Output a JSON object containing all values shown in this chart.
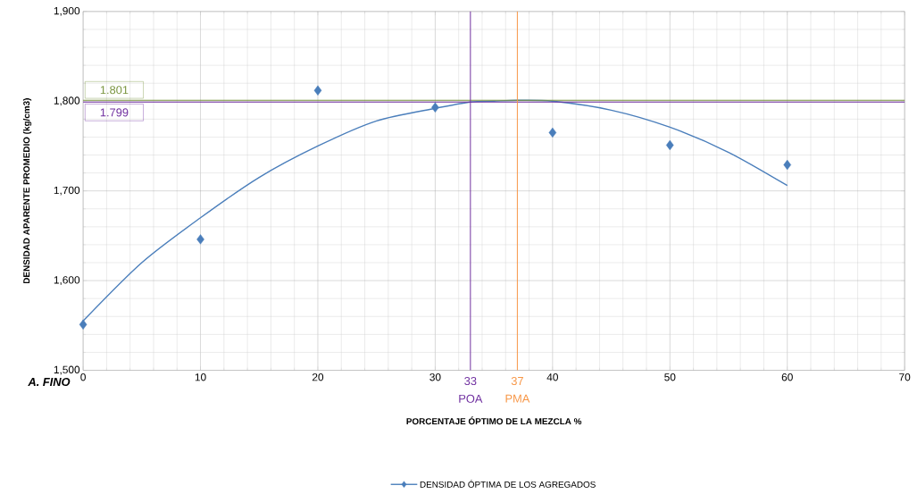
{
  "chart_data": {
    "type": "scatter",
    "xlabel": "PORCENTAJE ÓPTIMO DE LA MEZCLA %",
    "ylabel": "DENSIDAD APARENTE PROMEDIO (kg/cm3)",
    "xlim": [
      0,
      70
    ],
    "xticks": [
      0,
      10,
      20,
      30,
      40,
      50,
      60,
      70
    ],
    "ylim": [
      1500,
      1900
    ],
    "yticks": [
      {
        "value": 1500,
        "label": "1,500"
      },
      {
        "value": 1600,
        "label": "1,600"
      },
      {
        "value": 1700,
        "label": "1,700"
      },
      {
        "value": 1800,
        "label": "1,800"
      },
      {
        "value": 1900,
        "label": "1,900"
      }
    ],
    "grid": true,
    "legend": "bottom",
    "marker": "diamond",
    "series": [
      {
        "name": "DENSIDAD ÓPTIMA DE LOS AGREGADOS",
        "color": "#4a7ebb",
        "x": [
          0,
          10,
          20,
          30,
          40,
          50,
          60
        ],
        "values": [
          1551,
          1646,
          1812,
          1793,
          1765,
          1751,
          1729
        ]
      },
      {
        "type": "line",
        "color": "#4a7ebb",
        "marker": "none",
        "x": [
          0,
          5,
          10,
          15,
          20,
          25,
          30,
          33,
          35,
          37,
          40,
          45,
          50,
          55,
          60
        ],
        "values": [
          1555,
          1620,
          1670,
          1715,
          1750,
          1778,
          1792,
          1799,
          1800,
          1801,
          1800,
          1790,
          1771,
          1743,
          1706
        ]
      }
    ],
    "ref_lines": [
      {
        "axis": "y",
        "value": 1801,
        "color": "#77933c"
      },
      {
        "axis": "y",
        "value": 1799,
        "color": "#7030a0"
      },
      {
        "axis": "x",
        "value": 33,
        "label": "33",
        "color": "#7030a0"
      },
      {
        "axis": "x",
        "value": 37,
        "label": "37",
        "color": "#f79646"
      }
    ],
    "annotations": [
      "A. FINO",
      {
        "text": "1.801",
        "x": 0,
        "y": 1801
      },
      {
        "text": "1.799",
        "x": 0,
        "y": 1799
      },
      {
        "text": "POA",
        "x": 33,
        "y": 1500
      },
      {
        "text": "PMA",
        "x": 37,
        "y": 1500
      }
    ]
  }
}
